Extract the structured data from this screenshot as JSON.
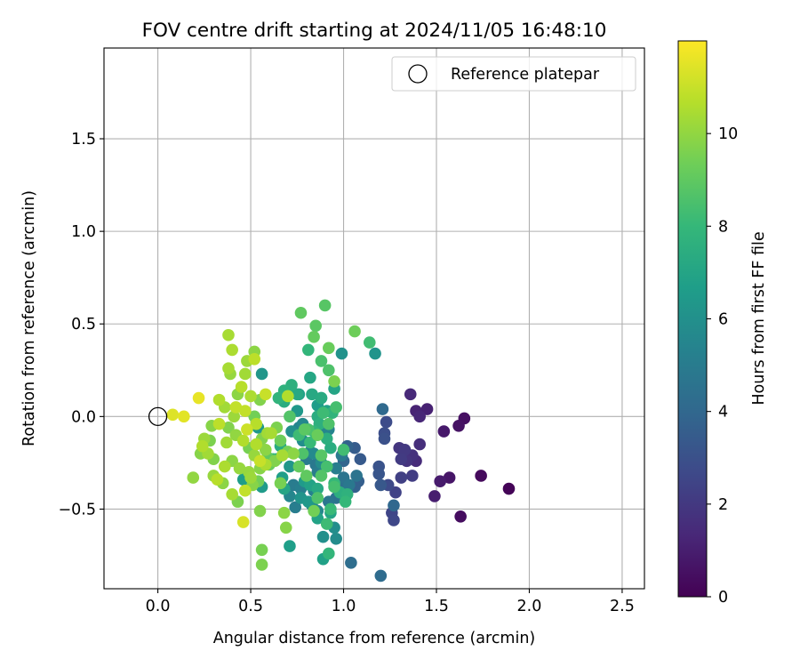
{
  "chart_data": {
    "type": "scatter",
    "title": "FOV centre drift starting at 2024/11/05 16:48:10",
    "xlabel": "Angular distance from reference (arcmin)",
    "ylabel": "Rotation from reference (arcmin)",
    "xlim": [
      -0.29,
      2.62
    ],
    "ylim": [
      -0.93,
      1.99
    ],
    "xticks": [
      0.0,
      0.5,
      1.0,
      1.5,
      2.0,
      2.5
    ],
    "xtick_labels": [
      "0.0",
      "0.5",
      "1.0",
      "1.5",
      "2.0",
      "2.5"
    ],
    "yticks": [
      -0.5,
      0.0,
      0.5,
      1.0,
      1.5
    ],
    "ytick_labels": [
      "−0.5",
      "0.0",
      "0.5",
      "1.0",
      "1.5"
    ],
    "grid": true,
    "legend": {
      "placement": "top-right",
      "entries": [
        {
          "label": "Reference platepar",
          "marker": "open-circle"
        }
      ]
    },
    "reference_point": {
      "x": 0.0,
      "y": 0.0
    },
    "colorbar": {
      "label": "Hours from first FF file",
      "range": [
        0,
        12
      ],
      "ticks": [
        0,
        2,
        4,
        6,
        8,
        10
      ],
      "tick_labels": [
        "0",
        "2",
        "4",
        "6",
        "8",
        "10"
      ],
      "colormap": "viridis",
      "colors": [
        "#440154",
        "#482878",
        "#3e4989",
        "#31688e",
        "#26828e",
        "#1f9e89",
        "#35b779",
        "#6ece58",
        "#b5de2b",
        "#fde725"
      ]
    },
    "points": [
      {
        "x": 1.89,
        "y": -0.39,
        "h": 0.1
      },
      {
        "x": 1.74,
        "y": -0.32,
        "h": 0.3
      },
      {
        "x": 1.63,
        "y": -0.54,
        "h": 0.4
      },
      {
        "x": 1.65,
        "y": -0.01,
        "h": 0.5
      },
      {
        "x": 1.62,
        "y": -0.05,
        "h": 0.6
      },
      {
        "x": 1.57,
        "y": -0.33,
        "h": 0.7
      },
      {
        "x": 1.54,
        "y": -0.08,
        "h": 0.8
      },
      {
        "x": 1.52,
        "y": -0.35,
        "h": 0.9
      },
      {
        "x": 1.49,
        "y": -0.43,
        "h": 1.0
      },
      {
        "x": 1.45,
        "y": 0.04,
        "h": 1.1
      },
      {
        "x": 1.39,
        "y": 0.03,
        "h": 1.2
      },
      {
        "x": 1.41,
        "y": 0.0,
        "h": 1.3
      },
      {
        "x": 1.36,
        "y": 0.12,
        "h": 1.4
      },
      {
        "x": 1.39,
        "y": -0.24,
        "h": 1.5
      },
      {
        "x": 1.41,
        "y": -0.15,
        "h": 1.6
      },
      {
        "x": 1.37,
        "y": -0.21,
        "h": 1.7
      },
      {
        "x": 1.34,
        "y": -0.24,
        "h": 1.8
      },
      {
        "x": 1.3,
        "y": -0.17,
        "h": 1.9
      },
      {
        "x": 1.33,
        "y": -0.18,
        "h": 2.0
      },
      {
        "x": 1.31,
        "y": -0.23,
        "h": 2.1
      },
      {
        "x": 1.37,
        "y": -0.32,
        "h": 2.2
      },
      {
        "x": 1.31,
        "y": -0.33,
        "h": 2.3
      },
      {
        "x": 1.28,
        "y": -0.41,
        "h": 2.4
      },
      {
        "x": 1.26,
        "y": -0.52,
        "h": 2.5
      },
      {
        "x": 1.27,
        "y": -0.56,
        "h": 2.6
      },
      {
        "x": 1.24,
        "y": -0.37,
        "h": 2.7
      },
      {
        "x": 1.23,
        "y": -0.03,
        "h": 2.8
      },
      {
        "x": 1.22,
        "y": -0.09,
        "h": 2.9
      },
      {
        "x": 1.22,
        "y": -0.12,
        "h": 3.0
      },
      {
        "x": 1.19,
        "y": -0.27,
        "h": 3.1
      },
      {
        "x": 1.19,
        "y": -0.31,
        "h": 3.2
      },
      {
        "x": 1.2,
        "y": -0.37,
        "h": 3.3
      },
      {
        "x": 1.09,
        "y": -0.23,
        "h": 3.4
      },
      {
        "x": 1.06,
        "y": -0.17,
        "h": 3.5
      },
      {
        "x": 1.08,
        "y": -0.35,
        "h": 3.6
      },
      {
        "x": 1.06,
        "y": -0.38,
        "h": 3.7
      },
      {
        "x": 1.02,
        "y": -0.16,
        "h": 3.8
      },
      {
        "x": 1.0,
        "y": -0.24,
        "h": 3.9
      },
      {
        "x": 1.27,
        "y": -0.48,
        "h": 4.0
      },
      {
        "x": 1.21,
        "y": 0.04,
        "h": 4.1
      },
      {
        "x": 1.2,
        "y": -0.86,
        "h": 4.2
      },
      {
        "x": 1.04,
        "y": -0.79,
        "h": 4.3
      },
      {
        "x": 0.99,
        "y": -0.37,
        "h": 4.4
      },
      {
        "x": 0.96,
        "y": -0.44,
        "h": 4.5
      },
      {
        "x": 1.0,
        "y": -0.33,
        "h": 4.6
      },
      {
        "x": 0.92,
        "y": -0.46,
        "h": 4.7
      },
      {
        "x": 0.85,
        "y": -0.26,
        "h": 4.8
      },
      {
        "x": 0.8,
        "y": -0.23,
        "h": 4.9
      },
      {
        "x": 0.73,
        "y": -0.37,
        "h": 5.0
      },
      {
        "x": 0.74,
        "y": -0.49,
        "h": 5.1
      },
      {
        "x": 0.77,
        "y": -0.39,
        "h": 5.2
      },
      {
        "x": 0.82,
        "y": -0.19,
        "h": 5.3
      },
      {
        "x": 0.76,
        "y": -0.06,
        "h": 5.4
      },
      {
        "x": 0.71,
        "y": -0.43,
        "h": 5.5
      },
      {
        "x": 0.86,
        "y": -0.51,
        "h": 5.6
      },
      {
        "x": 0.83,
        "y": -0.48,
        "h": 5.7
      },
      {
        "x": 0.96,
        "y": -0.66,
        "h": 5.8
      },
      {
        "x": 0.95,
        "y": -0.6,
        "h": 5.9
      },
      {
        "x": 0.89,
        "y": -0.65,
        "h": 6.0
      },
      {
        "x": 0.99,
        "y": 0.34,
        "h": 6.1
      },
      {
        "x": 1.17,
        "y": 0.34,
        "h": 6.2
      },
      {
        "x": 0.56,
        "y": 0.23,
        "h": 6.3
      },
      {
        "x": 0.54,
        "y": -0.06,
        "h": 6.4
      },
      {
        "x": 0.56,
        "y": -0.38,
        "h": 6.5
      },
      {
        "x": 0.46,
        "y": -0.34,
        "h": 6.6
      },
      {
        "x": 0.71,
        "y": -0.7,
        "h": 6.7
      },
      {
        "x": 0.89,
        "y": -0.77,
        "h": 6.8
      },
      {
        "x": 0.86,
        "y": -0.55,
        "h": 6.9
      },
      {
        "x": 0.93,
        "y": -0.52,
        "h": 7.0
      },
      {
        "x": 0.82,
        "y": 0.21,
        "h": 7.1
      },
      {
        "x": 0.75,
        "y": 0.12,
        "h": 7.2
      },
      {
        "x": 0.88,
        "y": 0.1,
        "h": 7.3
      },
      {
        "x": 0.86,
        "y": 0.0,
        "h": 7.4
      },
      {
        "x": 0.91,
        "y": -0.12,
        "h": 7.5
      },
      {
        "x": 0.72,
        "y": 0.17,
        "h": 7.6
      },
      {
        "x": 0.68,
        "y": 0.14,
        "h": 7.7
      },
      {
        "x": 0.65,
        "y": 0.1,
        "h": 7.8
      },
      {
        "x": 0.92,
        "y": -0.74,
        "h": 7.9
      },
      {
        "x": 0.95,
        "y": -0.36,
        "h": 8.0
      },
      {
        "x": 0.93,
        "y": -0.5,
        "h": 8.1
      },
      {
        "x": 0.76,
        "y": -0.1,
        "h": 8.2
      },
      {
        "x": 1.14,
        "y": 0.4,
        "h": 8.3
      },
      {
        "x": 0.96,
        "y": 0.05,
        "h": 8.4
      },
      {
        "x": 0.88,
        "y": 0.3,
        "h": 8.5
      },
      {
        "x": 0.78,
        "y": -0.2,
        "h": 8.6
      },
      {
        "x": 0.71,
        "y": 0.0,
        "h": 8.7
      },
      {
        "x": 0.9,
        "y": 0.6,
        "h": 8.8
      },
      {
        "x": 0.85,
        "y": 0.49,
        "h": 8.9
      },
      {
        "x": 0.77,
        "y": 0.56,
        "h": 9.0
      },
      {
        "x": 0.84,
        "y": 0.43,
        "h": 9.1
      },
      {
        "x": 0.92,
        "y": 0.37,
        "h": 9.2
      },
      {
        "x": 1.06,
        "y": 0.46,
        "h": 9.3
      },
      {
        "x": 0.84,
        "y": -0.51,
        "h": 9.4
      },
      {
        "x": 0.56,
        "y": -0.72,
        "h": 9.5
      },
      {
        "x": 0.56,
        "y": -0.8,
        "h": 9.6
      },
      {
        "x": 0.55,
        "y": -0.51,
        "h": 9.7
      },
      {
        "x": 0.69,
        "y": -0.6,
        "h": 9.8
      },
      {
        "x": 0.68,
        "y": -0.52,
        "h": 9.9
      },
      {
        "x": 0.19,
        "y": -0.33,
        "h": 10.0
      },
      {
        "x": 0.48,
        "y": 0.3,
        "h": 10.2
      },
      {
        "x": 0.38,
        "y": 0.44,
        "h": 10.4
      },
      {
        "x": 0.46,
        "y": -0.57,
        "h": 11.3
      },
      {
        "x": 0.14,
        "y": 0.0,
        "h": 11.5
      },
      {
        "x": 0.22,
        "y": 0.1,
        "h": 11.6
      },
      {
        "x": 0.08,
        "y": 0.01,
        "h": 11.4
      },
      {
        "x": 0.95,
        "y": 0.19,
        "h": 9.6
      },
      {
        "x": 0.7,
        "y": 0.11,
        "h": 10.6
      },
      {
        "x": 0.58,
        "y": 0.12,
        "h": 11.0
      },
      {
        "x": 0.4,
        "y": 0.36,
        "h": 10.5
      },
      {
        "x": 0.52,
        "y": 0.35,
        "h": 9.9
      },
      {
        "x": 0.52,
        "y": 0.31,
        "h": 10.8
      },
      {
        "x": 0.55,
        "y": 0.09,
        "h": 9.7
      },
      {
        "x": 0.47,
        "y": 0.23,
        "h": 10.3
      },
      {
        "x": 0.45,
        "y": 0.16,
        "h": 10.7
      },
      {
        "x": 0.38,
        "y": 0.26,
        "h": 10.4
      },
      {
        "x": 0.39,
        "y": 0.23,
        "h": 10.1
      },
      {
        "x": 0.43,
        "y": 0.12,
        "h": 9.9
      },
      {
        "x": 0.5,
        "y": 0.11,
        "h": 10.5
      },
      {
        "x": 0.36,
        "y": 0.05,
        "h": 10.3
      },
      {
        "x": 0.42,
        "y": 0.05,
        "h": 10.9
      },
      {
        "x": 0.28,
        "y": -0.13,
        "h": 9.6
      },
      {
        "x": 0.25,
        "y": -0.12,
        "h": 10.2
      },
      {
        "x": 0.24,
        "y": -0.16,
        "h": 10.6
      },
      {
        "x": 0.23,
        "y": -0.2,
        "h": 9.8
      },
      {
        "x": 0.27,
        "y": -0.2,
        "h": 10.3
      },
      {
        "x": 0.3,
        "y": -0.23,
        "h": 9.7
      },
      {
        "x": 0.3,
        "y": -0.32,
        "h": 10.1
      },
      {
        "x": 0.32,
        "y": -0.34,
        "h": 10.7
      },
      {
        "x": 0.35,
        "y": -0.36,
        "h": 9.9
      },
      {
        "x": 0.4,
        "y": -0.42,
        "h": 10.4
      },
      {
        "x": 0.43,
        "y": -0.46,
        "h": 9.6
      },
      {
        "x": 0.47,
        "y": -0.4,
        "h": 10.9
      },
      {
        "x": 0.5,
        "y": -0.33,
        "h": 10.2
      },
      {
        "x": 0.55,
        "y": -0.28,
        "h": 9.8
      },
      {
        "x": 0.58,
        "y": -0.26,
        "h": 10.5
      },
      {
        "x": 0.55,
        "y": -0.24,
        "h": 11.0
      },
      {
        "x": 0.52,
        "y": -0.21,
        "h": 10.1
      },
      {
        "x": 0.49,
        "y": -0.17,
        "h": 9.5
      },
      {
        "x": 0.46,
        "y": -0.13,
        "h": 10.6
      },
      {
        "x": 0.42,
        "y": -0.1,
        "h": 10.0
      },
      {
        "x": 0.38,
        "y": -0.06,
        "h": 9.7
      },
      {
        "x": 0.33,
        "y": -0.04,
        "h": 10.8
      },
      {
        "x": 0.37,
        "y": -0.14,
        "h": 10.3
      },
      {
        "x": 0.4,
        "y": -0.24,
        "h": 9.9
      },
      {
        "x": 0.36,
        "y": -0.27,
        "h": 10.5
      },
      {
        "x": 0.44,
        "y": -0.28,
        "h": 10.1
      },
      {
        "x": 0.48,
        "y": -0.07,
        "h": 11.1
      },
      {
        "x": 0.53,
        "y": -0.04,
        "h": 10.7
      },
      {
        "x": 0.52,
        "y": 0.0,
        "h": 9.4
      },
      {
        "x": 0.47,
        "y": 0.03,
        "h": 10.9
      },
      {
        "x": 0.41,
        "y": 0.0,
        "h": 10.2
      },
      {
        "x": 0.33,
        "y": 0.09,
        "h": 10.6
      },
      {
        "x": 0.29,
        "y": -0.05,
        "h": 9.8
      },
      {
        "x": 0.58,
        "y": -0.18,
        "h": 9.9
      },
      {
        "x": 0.61,
        "y": -0.09,
        "h": 10.4
      },
      {
        "x": 0.64,
        "y": -0.06,
        "h": 9.6
      },
      {
        "x": 0.66,
        "y": -0.13,
        "h": 9.3
      },
      {
        "x": 0.63,
        "y": -0.24,
        "h": 9.7
      },
      {
        "x": 0.66,
        "y": -0.36,
        "h": 9.5
      },
      {
        "x": 0.73,
        "y": -0.2,
        "h": 9.9
      },
      {
        "x": 0.7,
        "y": -0.19,
        "h": 9.4
      },
      {
        "x": 0.67,
        "y": -0.21,
        "h": 10.4
      },
      {
        "x": 0.76,
        "y": -0.27,
        "h": 9.1
      },
      {
        "x": 0.8,
        "y": -0.32,
        "h": 9.0
      },
      {
        "x": 0.88,
        "y": -0.32,
        "h": 8.7
      },
      {
        "x": 0.91,
        "y": -0.27,
        "h": 8.4
      },
      {
        "x": 0.88,
        "y": -0.21,
        "h": 8.8
      },
      {
        "x": 0.86,
        "y": -0.1,
        "h": 9.2
      },
      {
        "x": 0.81,
        "y": -0.07,
        "h": 8.5
      },
      {
        "x": 0.79,
        "y": -0.07,
        "h": 8.9
      },
      {
        "x": 0.82,
        "y": -0.14,
        "h": 8.1
      },
      {
        "x": 0.84,
        "y": -0.08,
        "h": 7.9
      },
      {
        "x": 0.87,
        "y": -0.04,
        "h": 7.6
      },
      {
        "x": 0.89,
        "y": 0.02,
        "h": 8.2
      },
      {
        "x": 0.92,
        "y": -0.04,
        "h": 8.6
      },
      {
        "x": 0.94,
        "y": 0.02,
        "h": 7.8
      },
      {
        "x": 0.93,
        "y": -0.17,
        "h": 7.4
      },
      {
        "x": 1.0,
        "y": -0.18,
        "h": 8.3
      },
      {
        "x": 1.01,
        "y": -0.46,
        "h": 8.0
      },
      {
        "x": 1.02,
        "y": -0.42,
        "h": 7.7
      },
      {
        "x": 0.98,
        "y": -0.41,
        "h": 7.5
      },
      {
        "x": 0.95,
        "y": -0.38,
        "h": 8.4
      },
      {
        "x": 0.86,
        "y": -0.44,
        "h": 8.6
      },
      {
        "x": 0.91,
        "y": -0.58,
        "h": 8.2
      },
      {
        "x": 0.86,
        "y": -0.39,
        "h": 7.2
      },
      {
        "x": 0.82,
        "y": -0.37,
        "h": 6.9
      },
      {
        "x": 0.79,
        "y": -0.35,
        "h": 6.5
      },
      {
        "x": 0.77,
        "y": -0.44,
        "h": 6.2
      },
      {
        "x": 0.71,
        "y": -0.27,
        "h": 6.3
      },
      {
        "x": 0.67,
        "y": -0.33,
        "h": 6.7
      },
      {
        "x": 0.68,
        "y": -0.39,
        "h": 7.0
      },
      {
        "x": 0.64,
        "y": -0.23,
        "h": 6.6
      },
      {
        "x": 0.72,
        "y": -0.08,
        "h": 6.0
      },
      {
        "x": 0.78,
        "y": -0.13,
        "h": 5.9
      },
      {
        "x": 0.75,
        "y": 0.03,
        "h": 6.4
      },
      {
        "x": 0.76,
        "y": 0.12,
        "h": 6.8
      },
      {
        "x": 0.7,
        "y": 0.12,
        "h": 7.1
      },
      {
        "x": 0.68,
        "y": 0.08,
        "h": 7.4
      },
      {
        "x": 0.66,
        "y": -0.16,
        "h": 7.3
      },
      {
        "x": 0.62,
        "y": -0.23,
        "h": 8.0
      },
      {
        "x": 0.78,
        "y": -0.04,
        "h": 5.6
      },
      {
        "x": 0.84,
        "y": -0.2,
        "h": 5.7
      },
      {
        "x": 0.88,
        "y": -0.25,
        "h": 5.8
      },
      {
        "x": 0.9,
        "y": -0.09,
        "h": 5.5
      },
      {
        "x": 0.92,
        "y": -0.07,
        "h": 5.4
      },
      {
        "x": 0.96,
        "y": -0.28,
        "h": 5.1
      },
      {
        "x": 1.03,
        "y": -0.37,
        "h": 4.8
      },
      {
        "x": 1.07,
        "y": -0.32,
        "h": 4.6
      },
      {
        "x": 0.99,
        "y": -0.21,
        "h": 4.9
      },
      {
        "x": 0.88,
        "y": 0.1,
        "h": 6.1
      },
      {
        "x": 0.86,
        "y": 0.06,
        "h": 6.6
      },
      {
        "x": 0.83,
        "y": 0.12,
        "h": 7.2
      },
      {
        "x": 0.95,
        "y": 0.15,
        "h": 7.0
      },
      {
        "x": 0.91,
        "y": 0.03,
        "h": 6.8
      },
      {
        "x": 0.92,
        "y": 0.25,
        "h": 8.6
      },
      {
        "x": 0.81,
        "y": 0.36,
        "h": 7.9
      },
      {
        "x": 0.86,
        "y": -0.3,
        "h": 5.0
      },
      {
        "x": 0.84,
        "y": -0.4,
        "h": 5.3
      },
      {
        "x": 0.81,
        "y": -0.46,
        "h": 6.4
      },
      {
        "x": 0.59,
        "y": -0.22,
        "h": 9.0
      },
      {
        "x": 0.6,
        "y": -0.26,
        "h": 9.2
      },
      {
        "x": 0.54,
        "y": -0.35,
        "h": 9.4
      },
      {
        "x": 0.51,
        "y": -0.37,
        "h": 9.8
      },
      {
        "x": 0.49,
        "y": -0.3,
        "h": 10.1
      },
      {
        "x": 0.53,
        "y": -0.15,
        "h": 10.6
      },
      {
        "x": 0.56,
        "y": -0.12,
        "h": 9.7
      },
      {
        "x": 0.59,
        "y": -0.09,
        "h": 10.3
      }
    ]
  }
}
